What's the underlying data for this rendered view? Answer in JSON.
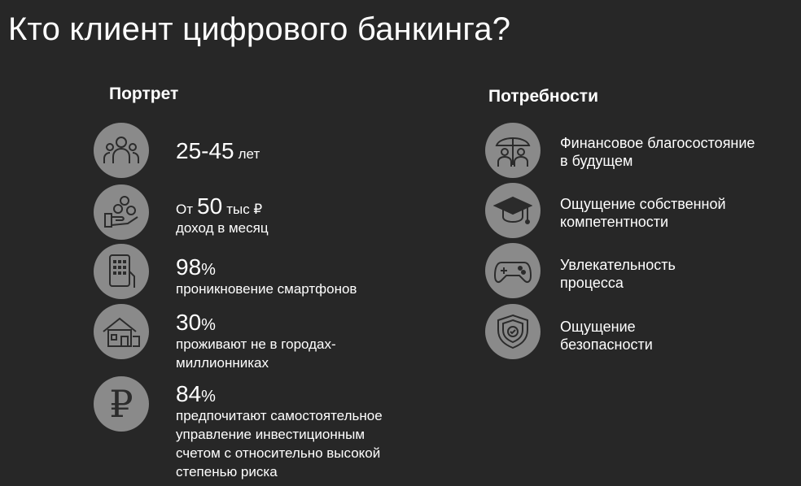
{
  "title": "Кто клиент цифрового банкинга?",
  "portrait": {
    "heading": "Портрет",
    "items": [
      {
        "icon": "people-group-icon",
        "value": "25-45",
        "unit": "лет"
      },
      {
        "icon": "money-hand-icon",
        "prefix": "От",
        "value": "50",
        "unit": "тыс ₽",
        "desc": "доход в месяц"
      },
      {
        "icon": "smartphone-hand-icon",
        "value": "98",
        "unit": "%",
        "desc": "проникновение смартфонов"
      },
      {
        "icon": "house-icon",
        "value": "30",
        "unit": "%",
        "desc_lines": [
          "проживают не в городах-",
          "миллионниках"
        ]
      },
      {
        "icon": "ruble-icon",
        "value": "84",
        "unit": "%",
        "desc_lines": [
          "предпочитают самостоятельное",
          "управление инвестиционным",
          "счетом с относительно высокой",
          "степенью риска"
        ]
      }
    ]
  },
  "needs": {
    "heading": "Потребности",
    "items": [
      {
        "icon": "family-umbrella-icon",
        "lines": [
          "Финансовое благосостояние",
          "в будущем"
        ]
      },
      {
        "icon": "graduation-cap-icon",
        "lines": [
          "Ощущение собственной",
          "компетентности"
        ]
      },
      {
        "icon": "gamepad-icon",
        "lines": [
          "Увлекательность",
          "процесса"
        ]
      },
      {
        "icon": "shield-check-icon",
        "lines": [
          "Ощущение",
          "безопасности"
        ]
      }
    ]
  },
  "colors": {
    "background": "#272727",
    "icon_circle": "#8a8a8a",
    "icon_stroke": "#2b2b2b",
    "text": "#ffffff"
  }
}
